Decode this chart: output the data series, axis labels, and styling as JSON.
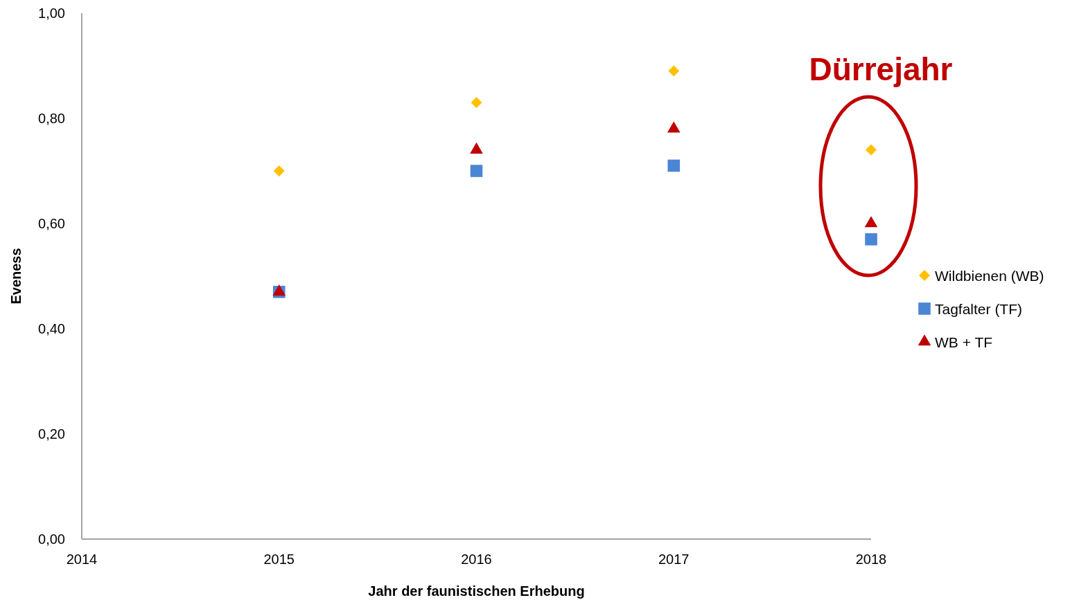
{
  "chart_data": {
    "type": "scatter",
    "xlabel": "Jahr der faunistischen Erhebung",
    "ylabel": "Eveness",
    "x": [
      2015,
      2016,
      2017,
      2018
    ],
    "series": [
      {
        "name": "Wildbienen (WB)",
        "color": "#ffc000",
        "marker": "diamond",
        "values": [
          0.7,
          0.83,
          0.89,
          0.74
        ]
      },
      {
        "name": "Tagfalter (TF)",
        "color": "#4a86d4",
        "marker": "square",
        "values": [
          0.47,
          0.7,
          0.71,
          0.57
        ]
      },
      {
        "name": "WB + TF",
        "color": "#c00000",
        "marker": "triangle",
        "values": [
          0.47,
          0.74,
          0.78,
          0.6
        ]
      }
    ],
    "xlim": [
      2014,
      2018
    ],
    "xticks": [
      2014,
      2015,
      2016,
      2017,
      2018
    ],
    "ylim": [
      0,
      1
    ],
    "yticks": [
      {
        "value": 0,
        "label": "0,00"
      },
      {
        "value": 0.2,
        "label": "0,20"
      },
      {
        "value": 0.4,
        "label": "0,40"
      },
      {
        "value": 0.6,
        "label": "0,60"
      },
      {
        "value": 0.8,
        "label": "0,80"
      },
      {
        "value": 1,
        "label": "1,00"
      }
    ],
    "grid": false,
    "legend": "right",
    "annotations": [
      "Dürrejahr"
    ]
  }
}
